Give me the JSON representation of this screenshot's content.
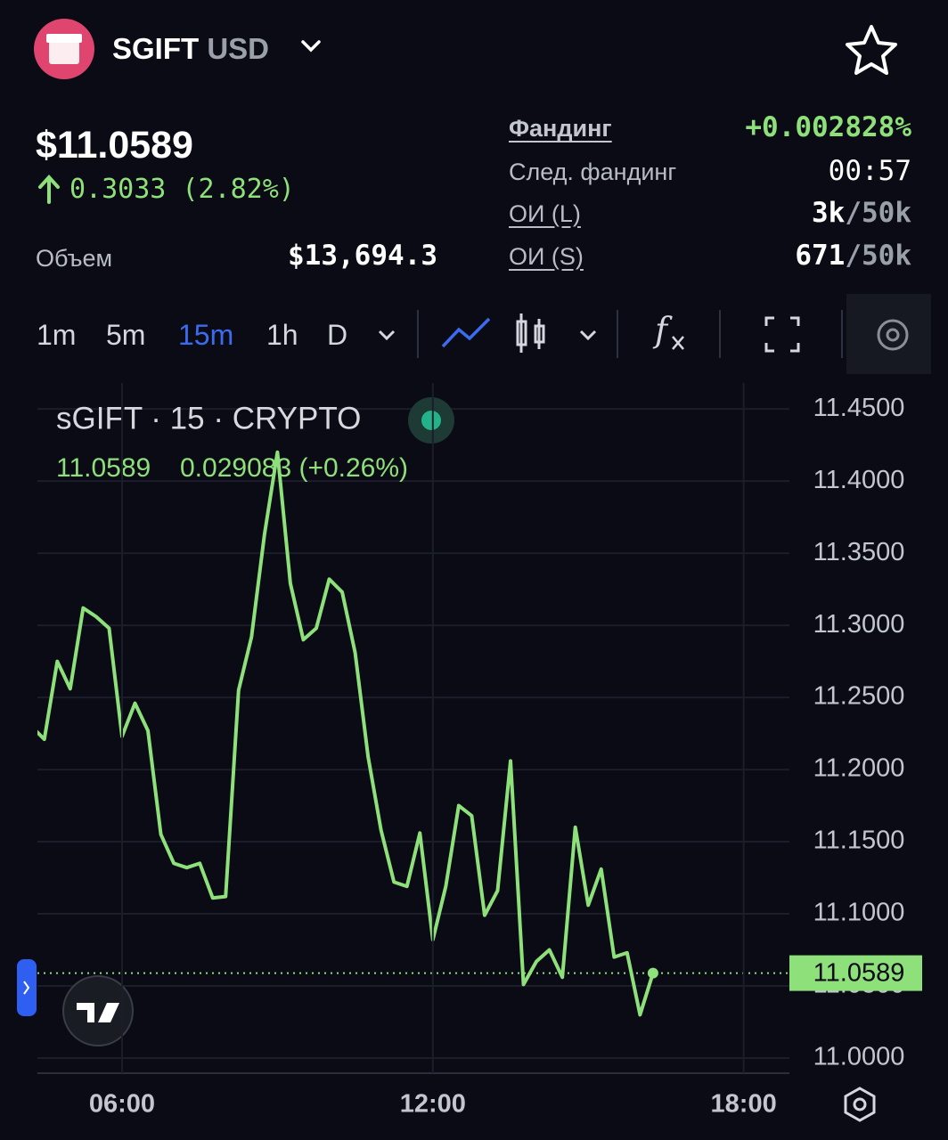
{
  "header": {
    "symbol": "SGIFT",
    "quote": "USD"
  },
  "price": {
    "last": "$11.0589",
    "change": "0.3033 (2.82%)",
    "volume_label": "Объем",
    "volume": "$13,694.3"
  },
  "funding": {
    "rows": [
      {
        "label": "Фандинг",
        "value": "+0.002828%"
      },
      {
        "label": "След. фандинг",
        "value": "00:57"
      },
      {
        "label": "ОИ (L)",
        "value": "3k",
        "limit": "/50k"
      },
      {
        "label": "ОИ (S)",
        "value": "671",
        "limit": "/50k"
      }
    ]
  },
  "toolbar": {
    "intervals": [
      "1m",
      "5m",
      "15m",
      "1h",
      "D"
    ],
    "active": 2
  },
  "chart_data": {
    "type": "line",
    "legend": {
      "title": "sGIFT · 15 · CRYPTO",
      "values": [
        "11.0589",
        "0.029083 (+0.26%)"
      ]
    },
    "color": "#8ee07a",
    "x": [
      "04:15",
      "04:30",
      "04:45",
      "05:00",
      "05:15",
      "05:30",
      "05:45",
      "06:00",
      "06:15",
      "06:30",
      "06:45",
      "07:00",
      "07:15",
      "07:30",
      "07:45",
      "08:00",
      "08:15",
      "08:30",
      "08:45",
      "09:00",
      "09:15",
      "09:30",
      "09:45",
      "10:00",
      "10:15",
      "10:30",
      "10:45",
      "11:00",
      "11:15",
      "11:30",
      "11:45",
      "12:00",
      "12:15",
      "12:30",
      "12:45",
      "13:00",
      "13:15",
      "13:30",
      "13:45",
      "14:00",
      "14:15",
      "14:30",
      "14:45",
      "15:00",
      "15:15",
      "15:30",
      "15:45",
      "16:00",
      "16:15"
    ],
    "values": [
      11.23,
      11.221,
      11.275,
      11.256,
      11.312,
      11.306,
      11.298,
      11.223,
      11.246,
      11.227,
      11.155,
      11.135,
      11.132,
      11.135,
      11.111,
      11.112,
      11.255,
      11.292,
      11.363,
      11.42,
      11.329,
      11.29,
      11.298,
      11.332,
      11.323,
      11.281,
      11.209,
      11.158,
      11.122,
      11.119,
      11.156,
      11.082,
      11.119,
      11.175,
      11.168,
      11.099,
      11.116,
      11.206,
      11.051,
      11.067,
      11.075,
      11.056,
      11.16,
      11.106,
      11.131,
      11.07,
      11.073,
      11.03,
      11.0589
    ],
    "xlim": [
      "04:22",
      "18:53"
    ],
    "xticks": [
      "06:00",
      "12:00",
      "18:00"
    ],
    "ylim": [
      10.9895,
      11.468
    ],
    "yticks": [
      {
        "value": 11.0,
        "label": "11.0000"
      },
      {
        "value": 11.05,
        "label": "11.0500"
      },
      {
        "value": 11.1,
        "label": "11.1000"
      },
      {
        "value": 11.15,
        "label": "11.1500"
      },
      {
        "value": 11.2,
        "label": "11.2000"
      },
      {
        "value": 11.25,
        "label": "11.2500"
      },
      {
        "value": 11.3,
        "label": "11.3000"
      },
      {
        "value": 11.35,
        "label": "11.3500"
      },
      {
        "value": 11.4,
        "label": "11.4000"
      },
      {
        "value": 11.45,
        "label": "11.4500"
      }
    ],
    "grid": true
  }
}
